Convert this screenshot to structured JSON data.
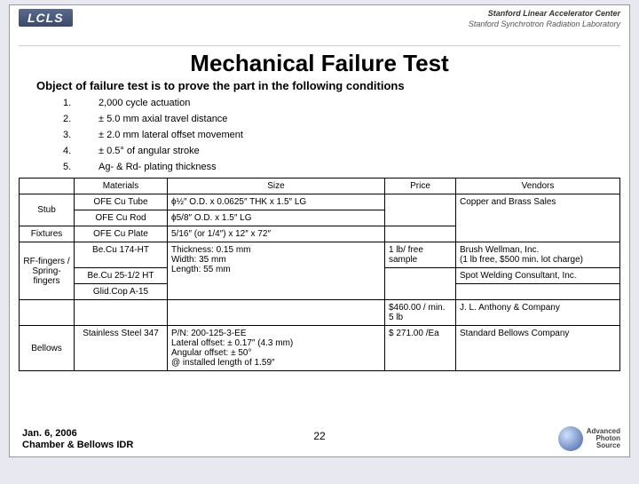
{
  "header": {
    "lcls": "LCLS",
    "slac_line1": "Stanford Linear Accelerator Center",
    "slac_line2": "Stanford Synchrotron Radiation Laboratory"
  },
  "title": "Mechanical Failure Test",
  "subtitle": "Object of failure test is to prove the part in the following conditions",
  "conditions": [
    {
      "n": "1.",
      "t": "2,000 cycle actuation"
    },
    {
      "n": "2.",
      "t": "± 5.0 mm axial travel distance"
    },
    {
      "n": "3.",
      "t": "± 2.0 mm lateral offset movement"
    },
    {
      "n": "4.",
      "t": "± 0.5° of angular stroke"
    },
    {
      "n": "5.",
      "t": "Ag- & Rd- plating thickness"
    }
  ],
  "table": {
    "headers": [
      "",
      "Materials",
      "Size",
      "Price",
      "Vendors"
    ],
    "rows": [
      {
        "cat": "Stub",
        "mat": "OFE Cu Tube",
        "size": "ϕ½″ O.D. x 0.0625″ THK x 1.5″ LG",
        "price": "",
        "vendor": "Copper and Brass Sales",
        "catRowspan": 2,
        "priceRowspan": 2,
        "vendorRowspan": 3
      },
      {
        "mat": "OFE Cu Rod",
        "size": "ϕ5/8″ O.D. x 1.5″ LG"
      },
      {
        "cat": "Fixtures",
        "mat": "OFE Cu Plate",
        "size": "5/16″ (or 1/4″) x 12″ x 72″",
        "price": ""
      },
      {
        "cat": "RF-fingers / Spring-fingers",
        "mat": "Be.Cu 174-HT",
        "size": "Thickness: 0.15 mm\nWidth: 35 mm\nLength: 55 mm",
        "price": "1 lb/ free sample",
        "vendor": "Brush Wellman, Inc.\n(1 lb free, $500 min. lot charge)",
        "catRowspan": 3,
        "sizeRowspan": 3
      },
      {
        "mat": "Be.Cu 25-1/2 HT",
        "price": "",
        "vendor": "Spot Welding Consultant, Inc.",
        "priceRowspan": 2
      },
      {
        "mat": "Glid.Cop A-15",
        "vendor": ""
      },
      {
        "blankCat": true,
        "blankMat": true,
        "blankSize": true,
        "price": "$460.00 / min. 5 lb",
        "vendor": "J. L. Anthony & Company"
      },
      {
        "cat": "Bellows",
        "mat": "Stainless Steel 347",
        "size": "P/N: 200-125-3-EE\nLateral offset: ± 0.17″ (4.3 mm)\nAngular offset: ± 50°\n@ installed length of 1.59″",
        "price": "$ 271.00 /Ea",
        "vendor": "Standard Bellows Company"
      }
    ]
  },
  "footer": {
    "date": "Jan. 6, 2006",
    "title": "Chamber & Bellows IDR"
  },
  "page": "22",
  "aps": {
    "l1": "Advanced",
    "l2": "Photon",
    "l3": "Source"
  }
}
